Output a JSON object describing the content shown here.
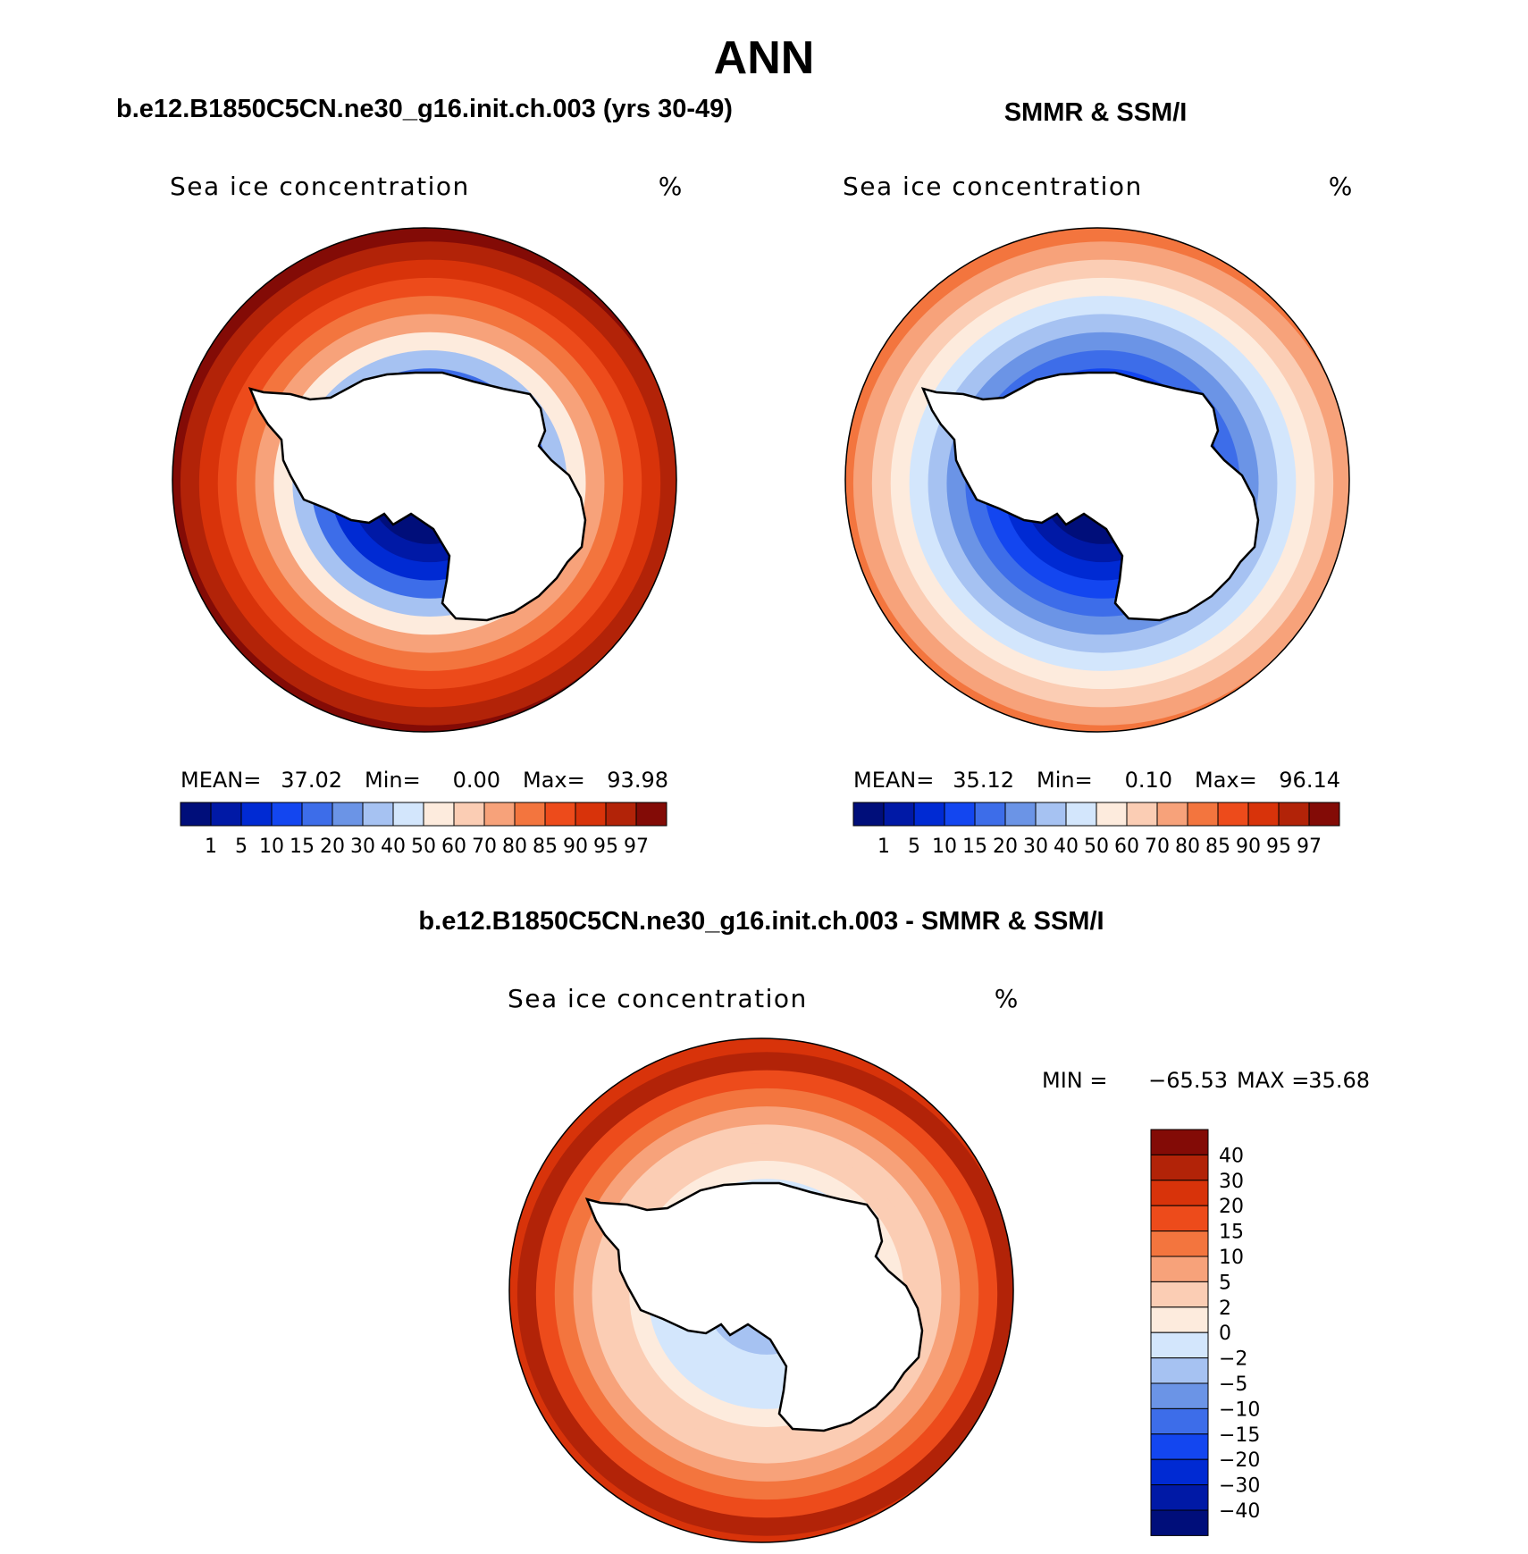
{
  "title": "ANN",
  "colors": {
    "abs": [
      "#000e7a",
      "#0019a6",
      "#002ad3",
      "#1346f0",
      "#3d6de9",
      "#6b94e6",
      "#a6c2f2",
      "#d3e6fc",
      "#fdebdd",
      "#fbcdb4",
      "#f7a27a",
      "#f3753e",
      "#ed4b1b",
      "#d8330a",
      "#b22308",
      "#830b06"
    ],
    "diff": [
      "#000e7a",
      "#0019a6",
      "#002ad3",
      "#1346f0",
      "#3d6de9",
      "#6b94e6",
      "#a6c2f2",
      "#d3e6fc",
      "#fdebdd",
      "#fbcdb4",
      "#f7a27a",
      "#f3753e",
      "#ed4b1b",
      "#d8330a",
      "#b22308",
      "#830b06"
    ],
    "continent_outline": "#000000",
    "land": "#ffffff"
  },
  "chart_data": [
    {
      "type": "heatmap",
      "panel": "model",
      "header": "b.e12.B1850C5CN.ne30_g16.init.ch.003 (yrs 30-49)",
      "title": "Sea ice concentration",
      "units": "%",
      "stats": {
        "mean_label": "MEAN=",
        "mean": "37.02",
        "min_label": "Min=",
        "min": "0.00",
        "max_label": "Max=",
        "max": "93.98"
      },
      "levels": [
        "1",
        "5",
        "10",
        "15",
        "20",
        "30",
        "40",
        "50",
        "60",
        "70",
        "80",
        "85",
        "90",
        "95",
        "97"
      ],
      "profile": [
        15,
        14,
        13,
        12,
        11,
        10,
        8,
        6,
        4,
        2,
        1,
        0
      ]
    },
    {
      "type": "heatmap",
      "panel": "observations",
      "header": "SMMR & SSM/I",
      "title": "Sea ice concentration",
      "units": "%",
      "stats": {
        "mean_label": "MEAN=",
        "mean": "35.12",
        "min_label": "Min=",
        "min": "0.10",
        "max_label": "Max=",
        "max": "96.14"
      },
      "levels": [
        "1",
        "5",
        "10",
        "15",
        "20",
        "30",
        "40",
        "50",
        "60",
        "70",
        "80",
        "85",
        "90",
        "95",
        "97"
      ],
      "profile": [
        11,
        10,
        9,
        8,
        7,
        6,
        5,
        4,
        3,
        2,
        1,
        0
      ]
    },
    {
      "type": "heatmap",
      "panel": "difference",
      "header": "b.e12.B1850C5CN.ne30_g16.init.ch.003 - SMMR & SSM/I",
      "title": "Sea ice concentration",
      "units": "%",
      "stats": {
        "min_label": "MIN =",
        "min": "−65.53",
        "max_label": "MAX =",
        "max": "35.68"
      },
      "levels": [
        "40",
        "30",
        "20",
        "15",
        "10",
        "5",
        "2",
        "0",
        "−2",
        "−5",
        "−10",
        "−15",
        "−20",
        "−30",
        "−40"
      ],
      "profile": [
        13,
        14,
        12,
        11,
        10,
        9,
        9,
        8,
        7,
        7,
        7,
        6
      ]
    }
  ]
}
